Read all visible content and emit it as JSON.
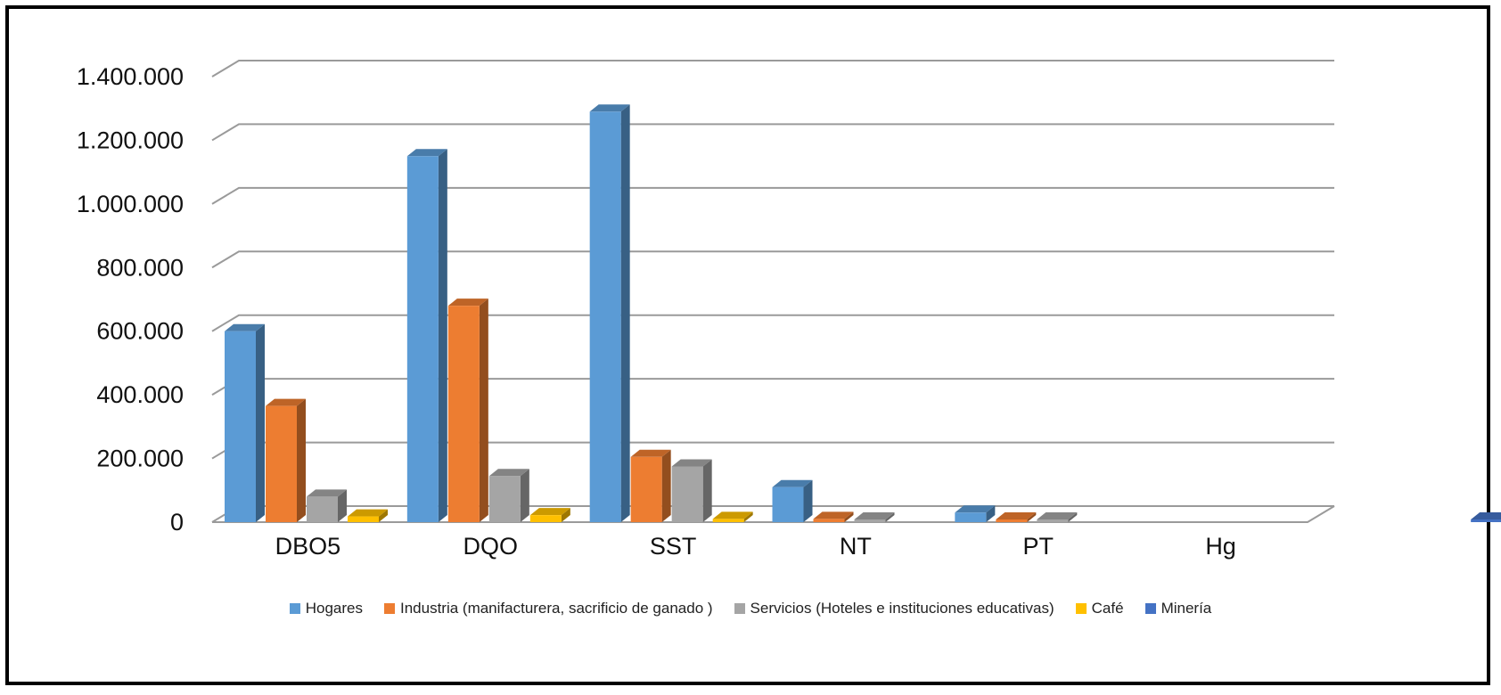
{
  "chart_data": {
    "type": "bar",
    "title": "",
    "xlabel": "",
    "ylabel": "",
    "categories": [
      "DBO5",
      "DQO",
      "SST",
      "NT",
      "PT",
      "Hg"
    ],
    "ylim": [
      0,
      1400000
    ],
    "yticks": [
      0,
      200000,
      400000,
      600000,
      800000,
      1000000,
      1200000,
      1400000
    ],
    "ytick_labels": [
      "0",
      "200.000",
      "400.000",
      "600.000",
      "800.000",
      "1.000.000",
      "1.200.000",
      "1.400.000"
    ],
    "grid": true,
    "legend_position": "bottom",
    "series": [
      {
        "name": "Hogares",
        "color": "#5b9bd5",
        "values": [
          600000,
          1150000,
          1290000,
          110000,
          30000,
          0
        ]
      },
      {
        "name": "Industria (manifacturera, sacrificio de ganado )",
        "color": "#ed7d31",
        "values": [
          365000,
          680000,
          205000,
          10000,
          3000,
          0
        ]
      },
      {
        "name": "Servicios (Hoteles e instituciones educativas)",
        "color": "#a5a5a5",
        "values": [
          80000,
          145000,
          175000,
          8000,
          2000,
          0
        ]
      },
      {
        "name": "Café",
        "color": "#ffc000",
        "values": [
          18000,
          22000,
          10000,
          0,
          0,
          0
        ]
      },
      {
        "name": "Minería",
        "color": "#4472c4",
        "values": [
          0,
          0,
          0,
          0,
          0,
          500
        ]
      }
    ]
  }
}
